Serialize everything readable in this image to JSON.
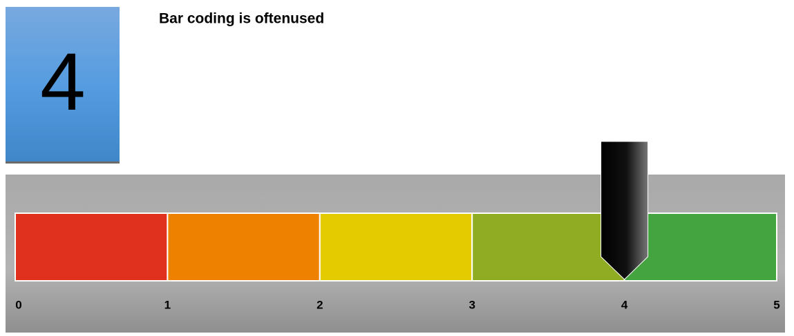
{
  "score": 4,
  "title": "Bar coding is oftenused",
  "scale": {
    "min": 0,
    "max": 5,
    "ticks": [
      0,
      1,
      2,
      3,
      4,
      5
    ],
    "segments": [
      {
        "color": "#e0301e"
      },
      {
        "color": "#ee8200"
      },
      {
        "color": "#e3cb00"
      },
      {
        "color": "#8fac23"
      },
      {
        "color": "#43a440"
      }
    ]
  }
}
